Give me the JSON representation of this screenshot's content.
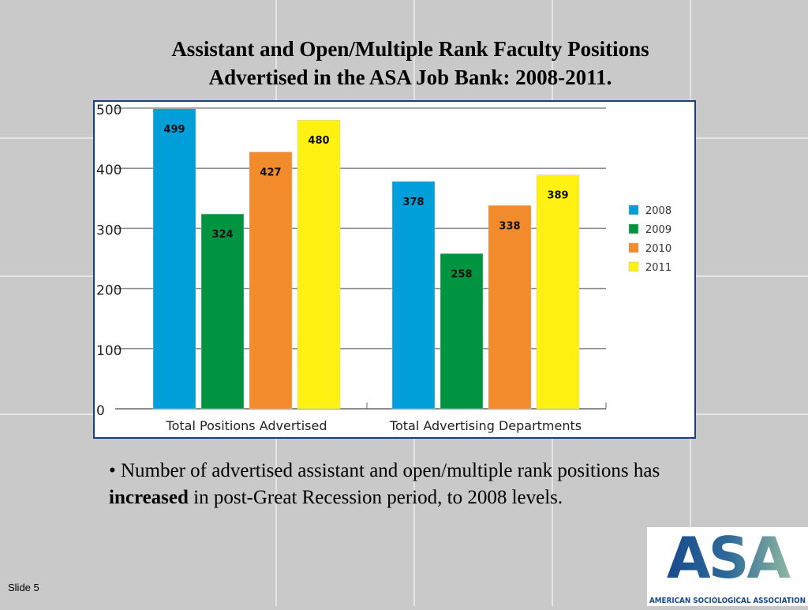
{
  "slide": {
    "title_line1": "Assistant and Open/Multiple Rank Faculty Positions",
    "title_line2": "Advertised in the ASA Job Bank: 2008-2011.",
    "bullet_prefix": "• Number of advertised assistant and open/multiple rank positions has",
    "bullet_bold": "increased",
    "bullet_rest": " in post-Great Recession period, to 2008 levels.",
    "slide_number": "Slide 5",
    "logo_text": "ASA",
    "logo_caption": "AMERICAN SOCIOLOGICAL ASSOCIATION"
  },
  "chart_data": {
    "type": "bar",
    "categories": [
      "Total Positions Advertised",
      "Total Advertising Departments"
    ],
    "series": [
      {
        "name": "2008",
        "color": "#009fda",
        "values": [
          499,
          378
        ]
      },
      {
        "name": "2009",
        "color": "#009440",
        "values": [
          324,
          258
        ]
      },
      {
        "name": "2010",
        "color": "#f18b2c",
        "values": [
          427,
          338
        ]
      },
      {
        "name": "2011",
        "color": "#fff212",
        "values": [
          480,
          389
        ]
      }
    ],
    "yticks": [
      "0",
      "100",
      "200",
      "300",
      "400",
      "500"
    ],
    "ylim": [
      0,
      500
    ],
    "grid": true,
    "legend": "right",
    "data_labels": true
  }
}
